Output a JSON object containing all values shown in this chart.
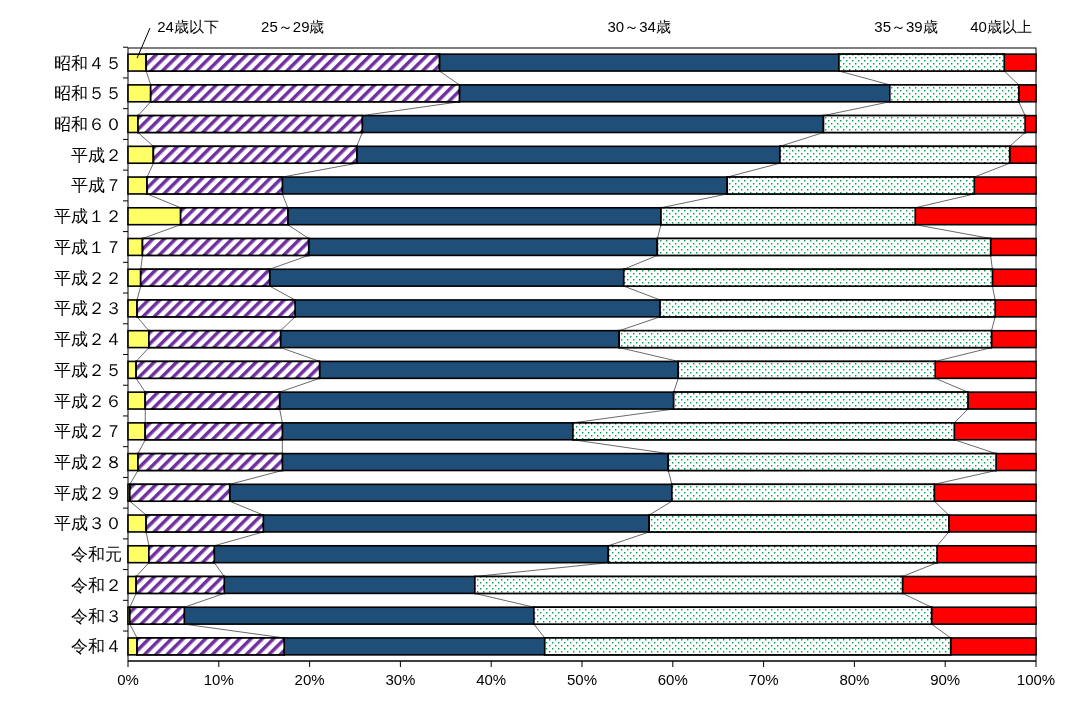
{
  "chart_data": {
    "type": "bar",
    "orientation": "horizontal",
    "stacked": true,
    "legend": "top",
    "categories": [
      "昭和４５",
      "昭和５５",
      "昭和６０",
      "平成２",
      "平成７",
      "平成１２",
      "平成１７",
      "平成２２",
      "平成２３",
      "平成２４",
      "平成２５",
      "平成２６",
      "平成２７",
      "平成２８",
      "平成２９",
      "平成３０",
      "令和元",
      "令和２",
      "令和３",
      "令和４"
    ],
    "series": [
      {
        "name": "24歳以下",
        "color": "#ffff66",
        "values": [
          2.0,
          2.5,
          1.1,
          2.8,
          2.1,
          5.8,
          1.6,
          1.4,
          1.0,
          2.3,
          0.9,
          1.9,
          1.9,
          1.1,
          0.2,
          2.0,
          2.3,
          0.9,
          0.2,
          1.0
        ]
      },
      {
        "name": "25～29歳",
        "color": "#7030a0",
        "values": [
          32.3,
          34.0,
          24.7,
          22.4,
          14.9,
          11.8,
          18.3,
          14.2,
          17.4,
          14.5,
          20.2,
          14.8,
          15.1,
          15.9,
          11.0,
          12.9,
          7.2,
          9.7,
          6.0,
          16.2
        ]
      },
      {
        "name": "30～34歳",
        "color": "#1f4e79",
        "values": [
          44.0,
          47.4,
          50.8,
          46.6,
          49.0,
          41.1,
          38.4,
          39.0,
          40.2,
          37.3,
          39.5,
          43.4,
          32.0,
          42.5,
          48.7,
          42.5,
          43.4,
          27.6,
          38.5,
          28.7
        ]
      },
      {
        "name": "35～39歳",
        "color": "#00a050",
        "values": [
          18.2,
          14.2,
          22.2,
          25.3,
          27.2,
          28.0,
          36.7,
          40.6,
          36.9,
          41.0,
          28.3,
          32.4,
          42.0,
          36.1,
          28.9,
          33.0,
          36.2,
          47.1,
          43.8,
          44.7
        ]
      },
      {
        "name": "40歳以上",
        "color": "#ff0000",
        "values": [
          3.5,
          1.9,
          1.2,
          2.9,
          6.8,
          13.3,
          5.0,
          4.8,
          4.5,
          4.9,
          11.1,
          7.5,
          9.0,
          4.4,
          11.2,
          9.6,
          10.9,
          14.7,
          11.5,
          9.4
        ]
      }
    ],
    "xlim": [
      0,
      100
    ],
    "xticks": [
      {
        "value": 0,
        "label": "0%"
      },
      {
        "value": 10,
        "label": "10%"
      },
      {
        "value": 20,
        "label": "20%"
      },
      {
        "value": 30,
        "label": "30%"
      },
      {
        "value": 40,
        "label": "40%"
      },
      {
        "value": 50,
        "label": "50%"
      },
      {
        "value": 60,
        "label": "60%"
      },
      {
        "value": 70,
        "label": "70%"
      },
      {
        "value": 80,
        "label": "80%"
      },
      {
        "value": 90,
        "label": "90%"
      },
      {
        "value": 100,
        "label": "100%"
      }
    ]
  }
}
